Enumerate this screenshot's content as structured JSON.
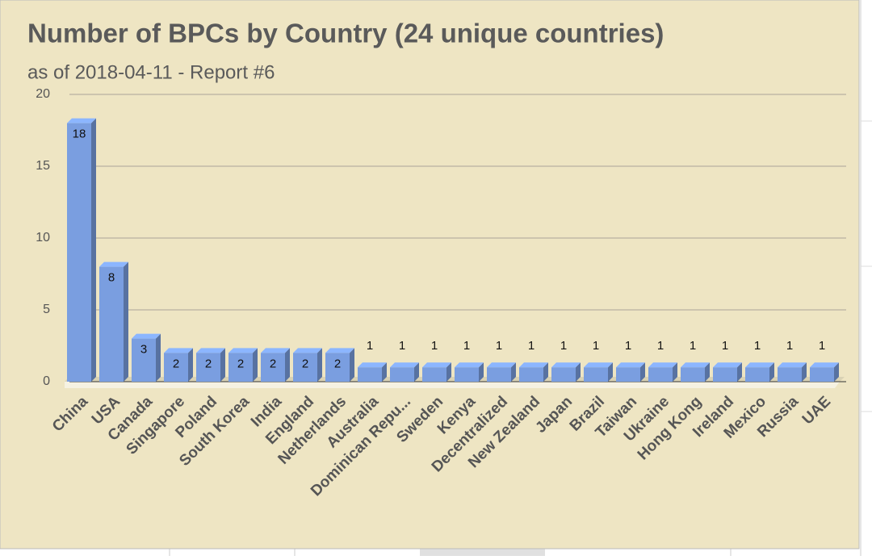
{
  "chart_data": {
    "type": "bar",
    "title": "Number of BPCs by Country (24 unique countries)",
    "subtitle": "as of 2018-04-11 - Report #6",
    "categories": [
      "China",
      "USA",
      "Canada",
      "Singapore",
      "Poland",
      "South Korea",
      "India",
      "England",
      "Netherlands",
      "Australia",
      "Dominican Repu...",
      "Sweden",
      "Kenya",
      "Decentralized",
      "New Zealand",
      "Japan",
      "Brazil",
      "Taiwan",
      "Ukraine",
      "Hong Kong",
      "Ireland",
      "Mexico",
      "Russia",
      "UAE"
    ],
    "values": [
      18,
      8,
      3,
      2,
      2,
      2,
      2,
      2,
      2,
      1,
      1,
      1,
      1,
      1,
      1,
      1,
      1,
      1,
      1,
      1,
      1,
      1,
      1,
      1
    ],
    "color": "#7a9ee0",
    "ylim": [
      0,
      20
    ],
    "yticks": [
      0,
      5,
      10,
      15,
      20
    ],
    "grid": true
  }
}
